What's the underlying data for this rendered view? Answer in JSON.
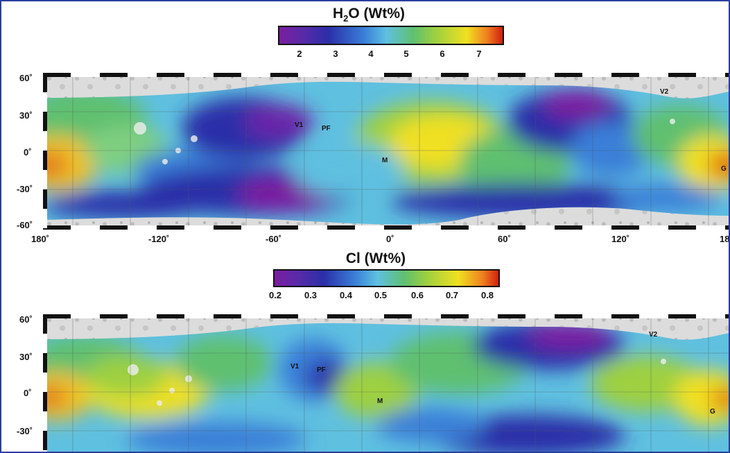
{
  "panel_top": {
    "title_text": "H",
    "title_sub": "2",
    "title_rest": "O (Wt%)",
    "colorbar_ticks": [
      "2",
      "3",
      "4",
      "5",
      "6",
      "7"
    ],
    "lat_labels": [
      "60˚",
      "30˚",
      "0˚",
      "-30˚",
      "-60˚"
    ],
    "lon_labels": [
      "180˚",
      "-120˚",
      "-60˚",
      "0˚",
      "60˚",
      "120˚",
      "18"
    ],
    "features": [
      "V1",
      "PF",
      "M",
      "V2",
      "G"
    ]
  },
  "panel_bottom": {
    "title": "Cl (Wt%)",
    "colorbar_ticks": [
      "0.2",
      "0.3",
      "0.4",
      "0.5",
      "0.6",
      "0.7",
      "0.8"
    ],
    "lat_labels": [
      "60˚",
      "30˚",
      "0˚",
      "-30˚"
    ],
    "features": [
      "V1",
      "PF",
      "M",
      "V2",
      "G"
    ]
  },
  "colors": {
    "frame": "#2a3f9e",
    "scale": [
      "#7a1ea0",
      "#2a2fa8",
      "#3a7fd8",
      "#5fc0e0",
      "#5fc070",
      "#c8d840",
      "#f0e020",
      "#f08020",
      "#d02010"
    ]
  }
}
